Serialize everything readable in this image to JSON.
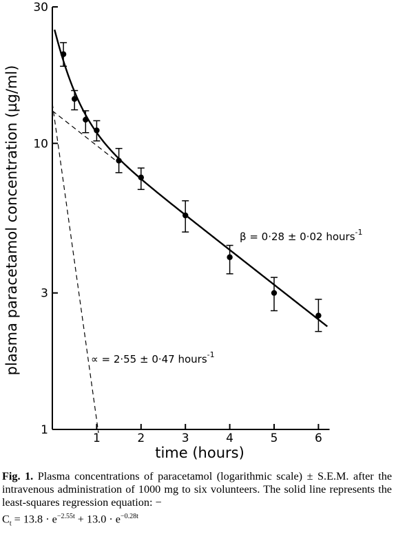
{
  "chart_data": {
    "type": "scatter",
    "xlabel": "time (hours)",
    "ylabel": "plasma paracetamol concentration (µg/ml)",
    "xlim": [
      0,
      6.25
    ],
    "ylim": [
      1,
      30
    ],
    "yscale": "log",
    "xticks": [
      1,
      2,
      3,
      4,
      5,
      6
    ],
    "yticks": [
      1,
      3,
      10,
      30
    ],
    "xtick_labels": [
      "1",
      "2",
      "3",
      "4",
      "5",
      "6"
    ],
    "ytick_labels": [
      "1",
      "3",
      "10",
      "30"
    ],
    "grid": false,
    "series": [
      {
        "kind": "points_with_error_bars",
        "x": [
          0.25,
          0.5,
          0.75,
          1.0,
          1.5,
          2.0,
          3.0,
          4.0,
          5.0,
          6.0
        ],
        "y": [
          20.5,
          14.3,
          12.1,
          11.1,
          8.7,
          7.6,
          5.6,
          4.0,
          3.0,
          2.5
        ],
        "err_low": [
          18.6,
          13.1,
          10.9,
          10.2,
          7.9,
          6.9,
          4.9,
          3.5,
          2.6,
          2.2
        ],
        "err_high": [
          22.5,
          15.3,
          13.0,
          12.0,
          9.6,
          8.2,
          6.3,
          4.4,
          3.4,
          2.85
        ]
      },
      {
        "kind": "solid_fit",
        "equation_coefficients": {
          "a1": 13.8,
          "k1": 2.55,
          "a2": 13.0,
          "k2": 0.28
        },
        "x_range": [
          0.05,
          6.2
        ]
      },
      {
        "kind": "dashed_beta_phase",
        "intercept": 13.0,
        "rate": 0.28,
        "x_range": [
          0,
          1.5
        ]
      },
      {
        "kind": "dashed_alpha_phase",
        "intercept": 13.8,
        "rate": 2.55,
        "x_range": [
          0,
          1.04
        ]
      }
    ],
    "annotations": [
      {
        "text_prefix": "β = 0·28 ± 0·02 hours",
        "superscript": "-1"
      },
      {
        "text_prefix": "∝ = 2·55 ± 0·47 hours",
        "superscript": "-1"
      }
    ]
  },
  "caption": {
    "fig_label": "Fig. 1.",
    "text": "Plasma concentrations of paracetamol (logarithmic scale) ± S.E.M. after the intravenous administration of 1000 mg to six volunteers. The solid line represents the least-squares regression equation: −",
    "eq_c": "C",
    "eq_t": "t",
    "eq_part1": " = 13.8 · e",
    "eq_exp1": "−2.55t",
    "eq_part2": " + 13.0 · e",
    "eq_exp2": "−0.28t"
  }
}
